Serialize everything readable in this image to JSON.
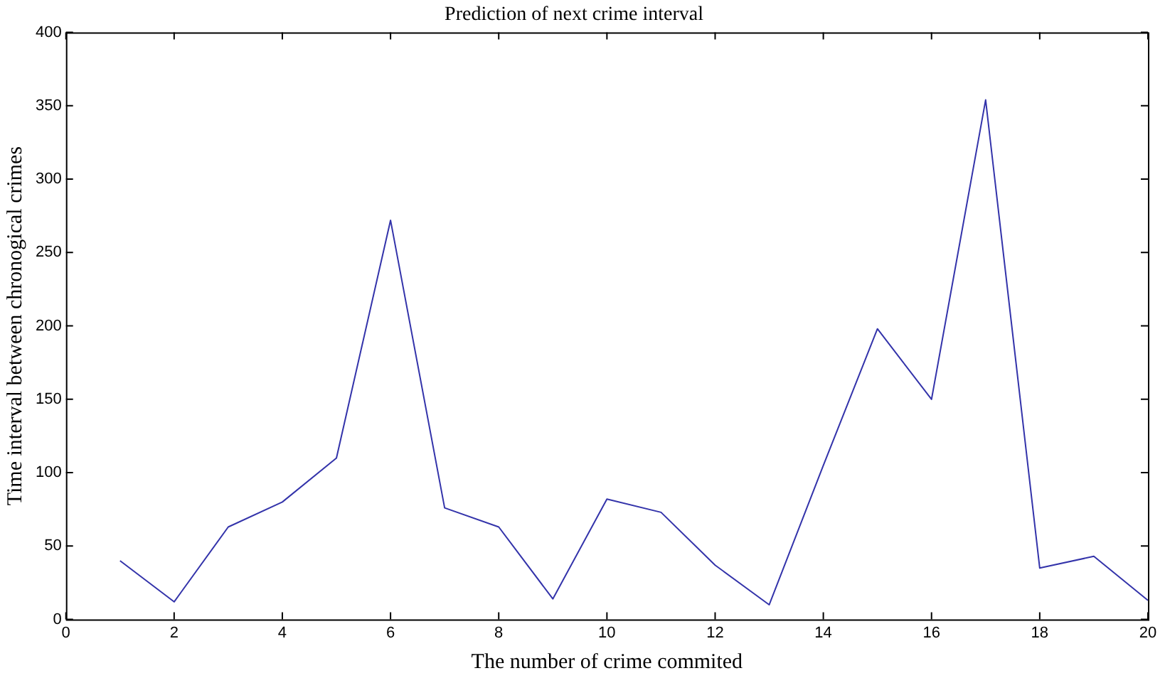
{
  "chart_data": {
    "type": "line",
    "title": "Prediction of next crime interval",
    "xlabel": "The number of crime commited",
    "ylabel": "Time interval between chronogical crimes",
    "x": [
      1,
      2,
      3,
      4,
      5,
      6,
      7,
      8,
      9,
      10,
      11,
      12,
      13,
      14,
      15,
      16,
      17,
      18,
      19,
      20
    ],
    "series": [
      {
        "color": "#3333aa",
        "values": [
          40,
          12,
          63,
          80,
          110,
          272,
          76,
          63,
          14,
          82,
          73,
          37,
          10,
          105,
          198,
          150,
          354,
          35,
          43,
          13
        ]
      }
    ],
    "xlim": [
      0,
      20
    ],
    "xticks": [
      0,
      2,
      4,
      6,
      8,
      10,
      12,
      14,
      16,
      18,
      20
    ],
    "ylim": [
      0,
      400
    ],
    "yticks": [
      0,
      50,
      100,
      150,
      200,
      250,
      300,
      350,
      400
    ],
    "grid": false,
    "legend": false,
    "marker": "none",
    "line_style": "solid"
  }
}
